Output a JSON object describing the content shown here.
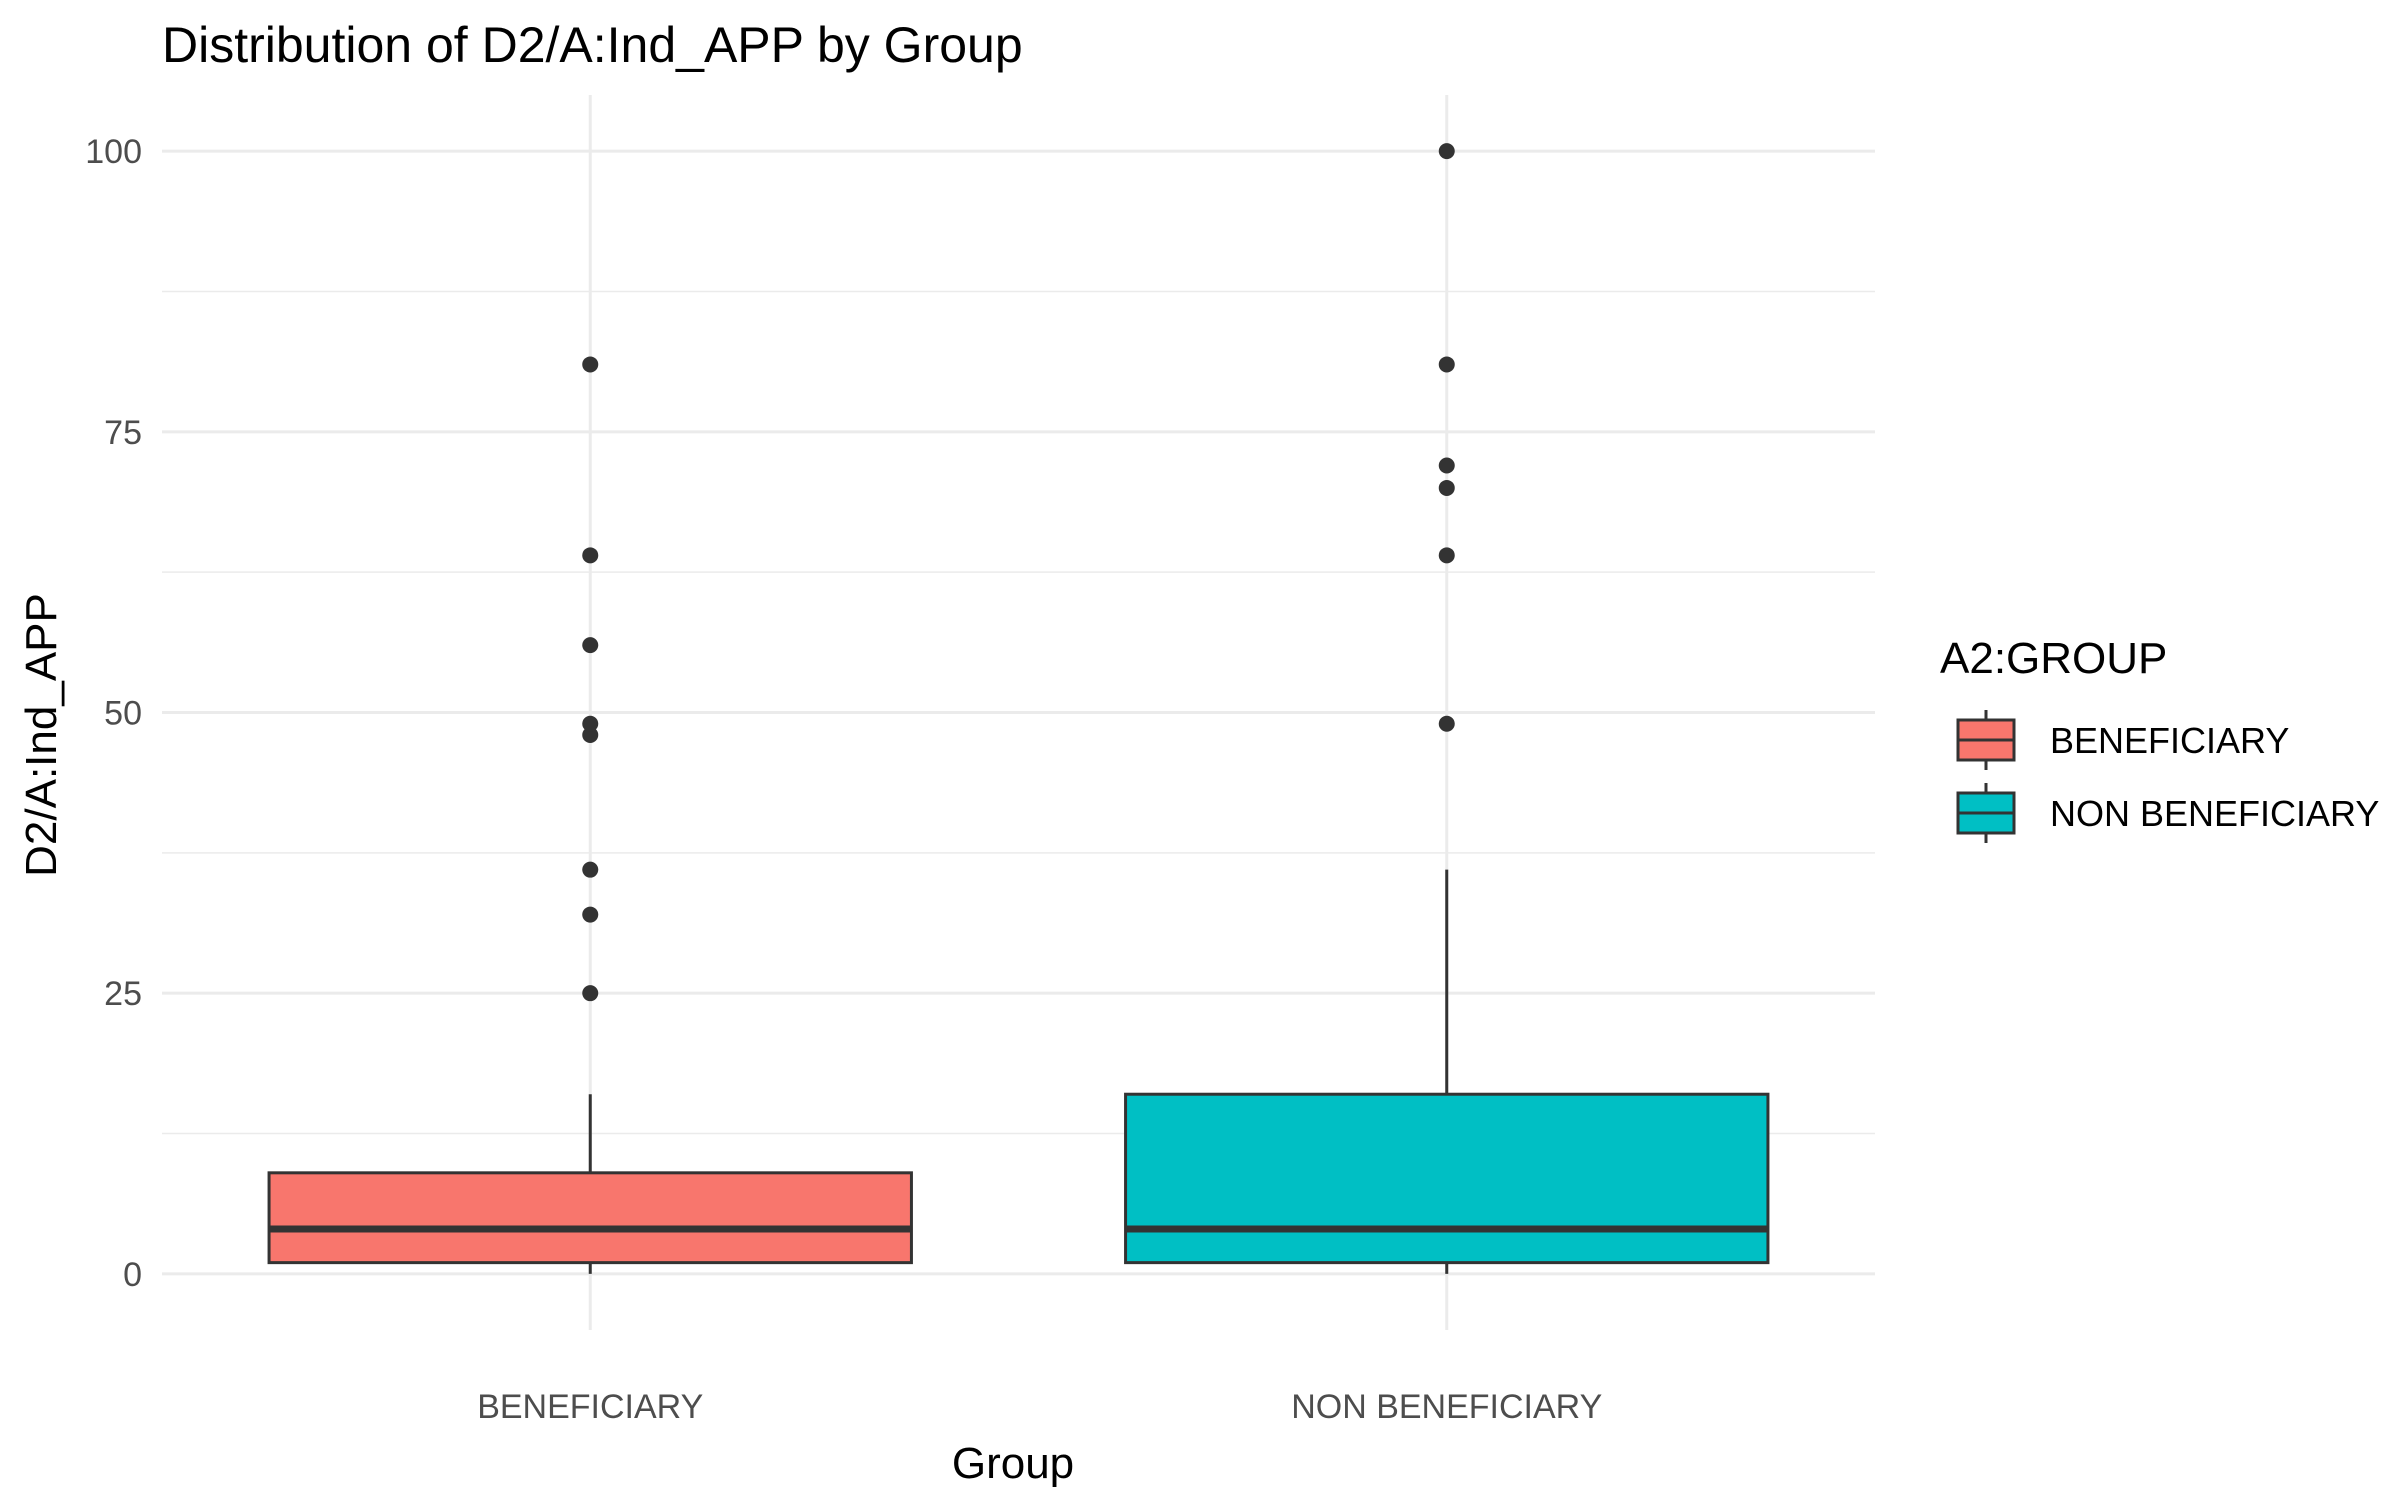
{
  "chart_data": {
    "type": "boxplot",
    "title": "Distribution of D2/A:Ind_APP by Group",
    "xlabel": "Group",
    "ylabel": "D2/A:Ind_APP",
    "ylim": [
      -5,
      105
    ],
    "yticks": [
      0,
      25,
      50,
      75,
      100
    ],
    "grid": true,
    "legend": {
      "title": "A2:GROUP",
      "position": "right",
      "entries": [
        "BENEFICIARY",
        "NON BENEFICIARY"
      ]
    },
    "categories": [
      "BENEFICIARY",
      "NON BENEFICIARY"
    ],
    "series": [
      {
        "name": "BENEFICIARY",
        "color": "#F8766D",
        "min": 0,
        "q1": 1,
        "median": 4,
        "q3": 9,
        "max": 16,
        "outliers": [
          25,
          32,
          36,
          48,
          49,
          56,
          64,
          81
        ]
      },
      {
        "name": "NON BENEFICIARY",
        "color": "#00BFC4",
        "min": 0,
        "q1": 1,
        "median": 4,
        "q3": 16,
        "max": 36,
        "outliers": [
          49,
          64,
          70,
          72,
          81,
          100
        ]
      }
    ]
  }
}
